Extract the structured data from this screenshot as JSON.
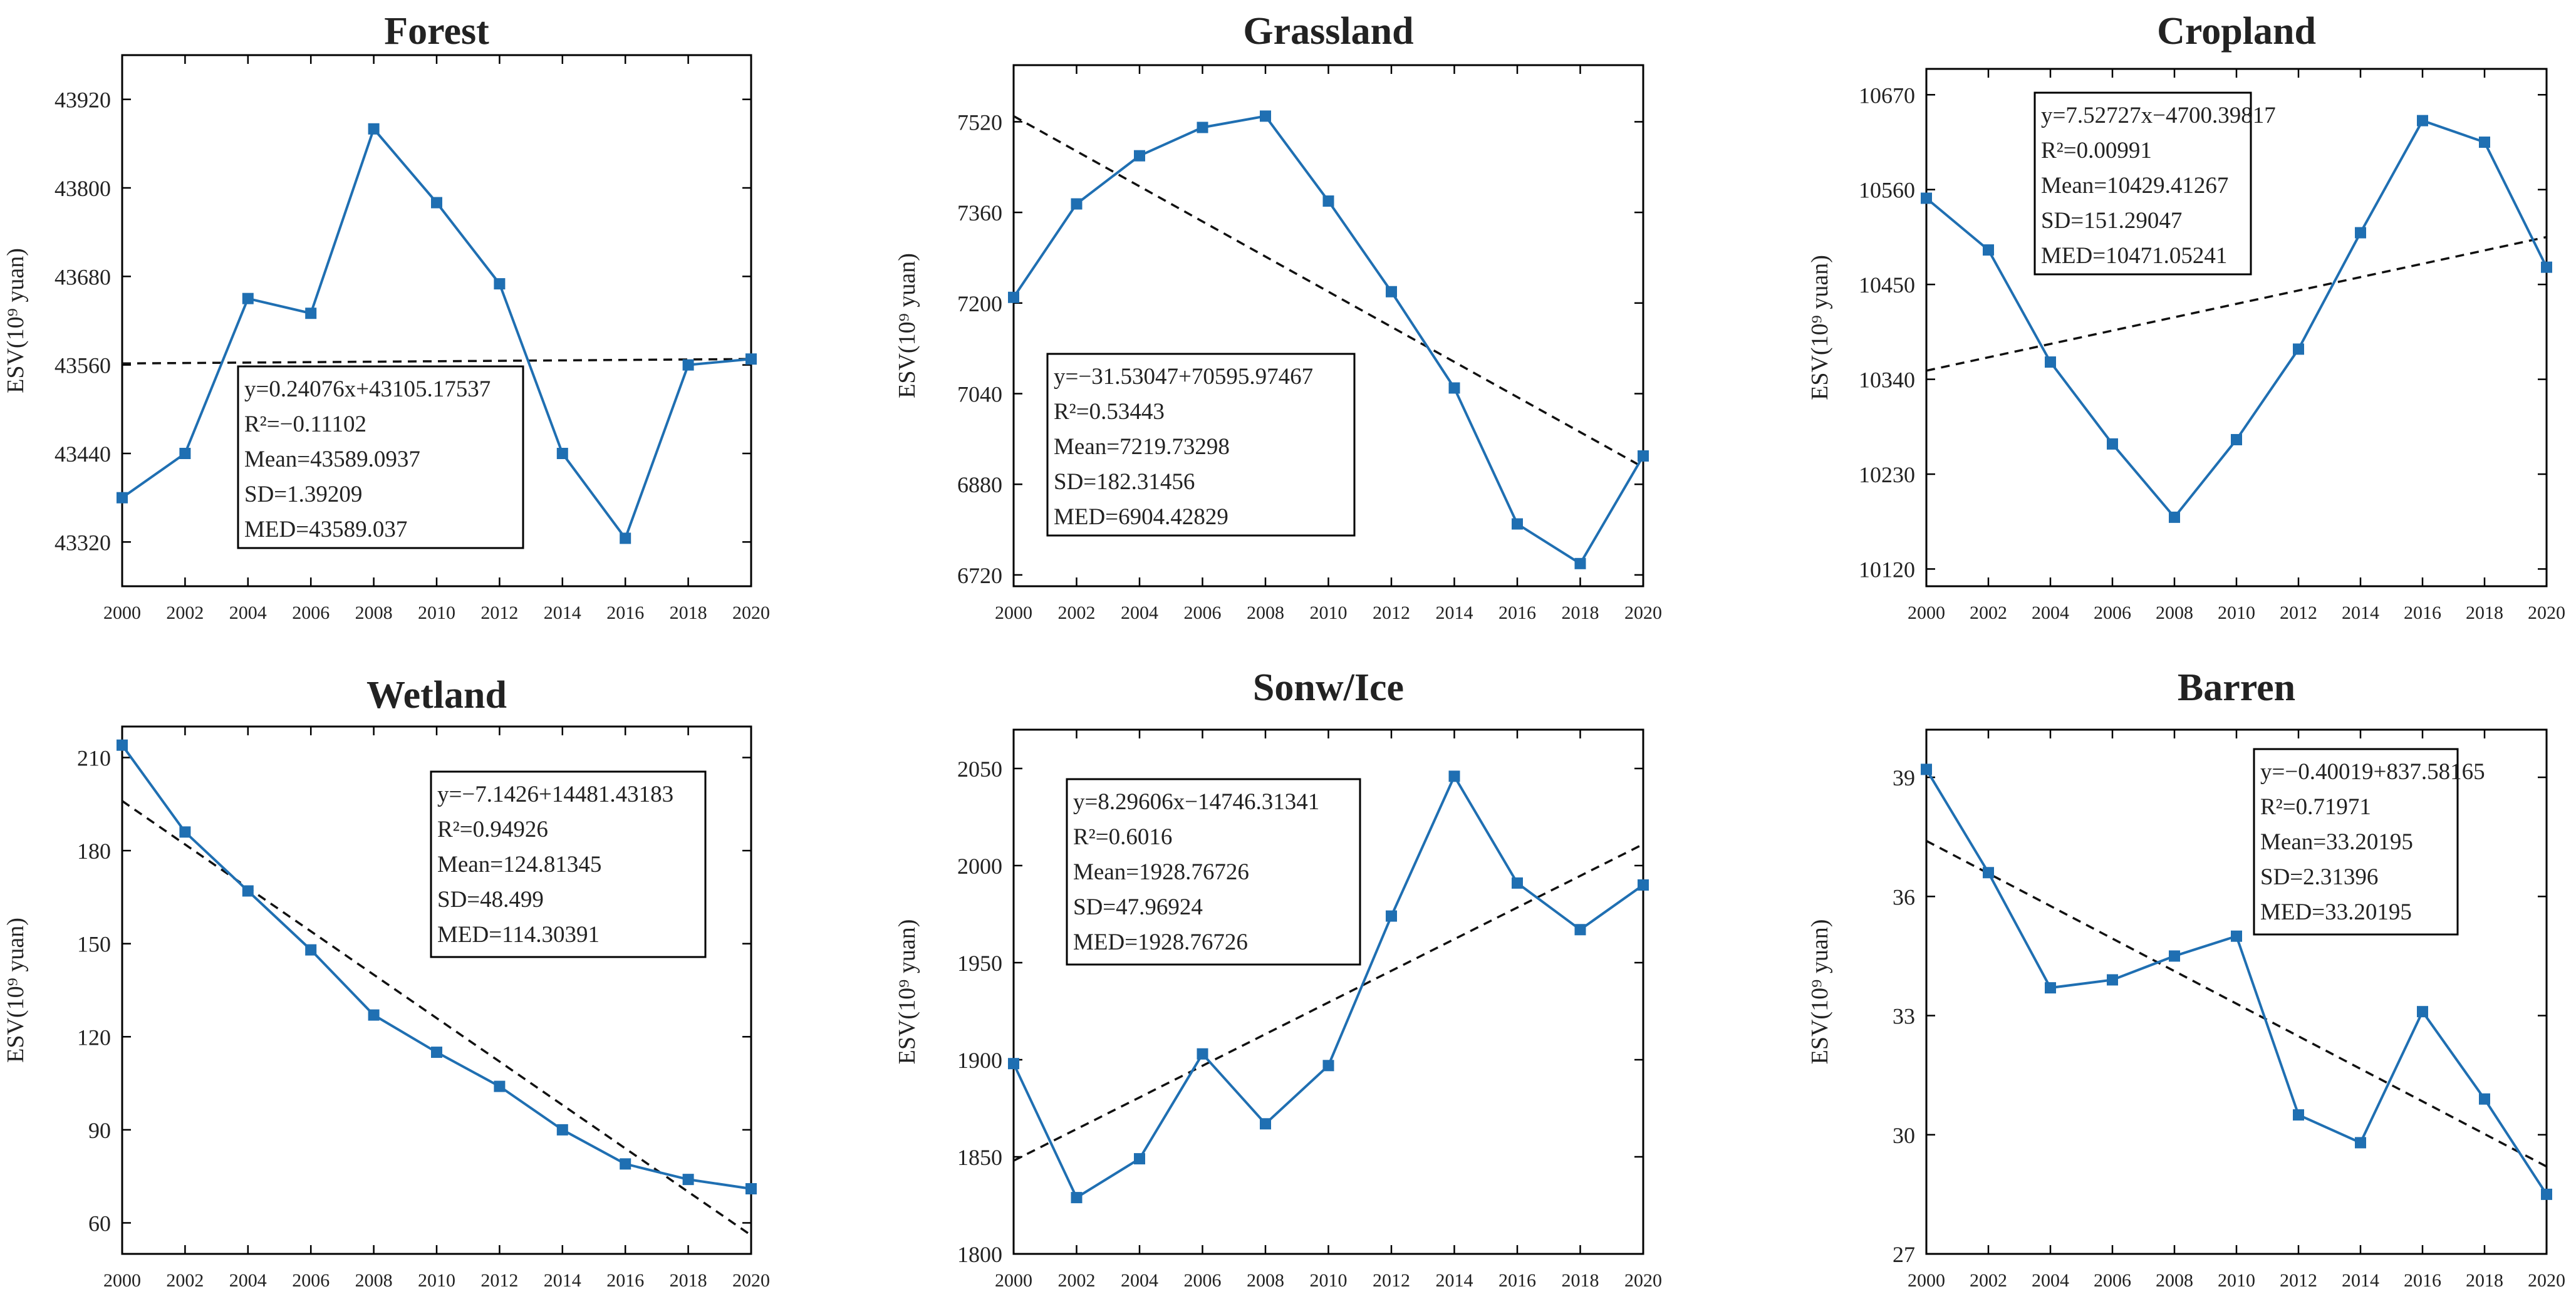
{
  "figure": {
    "colors": {
      "series": "#1f6fb2",
      "trend": "#111111",
      "axis": "#000000",
      "text": "#222222"
    }
  },
  "chart_data": [
    {
      "type": "line",
      "title": "Forest",
      "ylabel": "ESV(10⁹ yuan)",
      "x": [
        2000,
        2002,
        2004,
        2006,
        2008,
        2010,
        2012,
        2014,
        2016,
        2018,
        2020
      ],
      "xlim": [
        2000,
        2020
      ],
      "ylim": [
        43260,
        43980
      ],
      "yticks": [
        43320,
        43440,
        43560,
        43680,
        43800,
        43920
      ],
      "series": [
        {
          "values": [
            43380,
            43440,
            43650,
            43630,
            43880,
            43780,
            43670,
            43440,
            43325,
            43560,
            43568
          ]
        }
      ],
      "trend": [
        43562,
        43568
      ],
      "stats": [
        "y=0.24076x+43105.17537",
        "R²=−0.11102",
        "Mean=43589.0937",
        "SD=1.39209",
        "MED=43589.037"
      ],
      "legend_position": "bottom-center",
      "grid": false
    },
    {
      "type": "line",
      "title": "Grassland",
      "ylabel": "ESV(10⁹ yuan)",
      "x": [
        2000,
        2002,
        2004,
        2006,
        2008,
        2010,
        2012,
        2014,
        2016,
        2018,
        2020
      ],
      "xlim": [
        2000,
        2020
      ],
      "ylim": [
        6700,
        7620
      ],
      "yticks": [
        6720,
        6880,
        7040,
        7200,
        7360,
        7520
      ],
      "series": [
        {
          "values": [
            7210,
            7375,
            7460,
            7510,
            7530,
            7380,
            7220,
            7050,
            6810,
            6740,
            6930
          ]
        }
      ],
      "trend": [
        7530,
        6910
      ],
      "stats": [
        "y=−31.53047+70595.97467",
        "R²=0.53443",
        "Mean=7219.73298",
        "SD=182.31456",
        "MED=6904.42829"
      ],
      "legend_position": "bottom-left",
      "grid": false
    },
    {
      "type": "line",
      "title": "Cropland",
      "ylabel": "ESV(10⁹ yuan)",
      "x": [
        2000,
        2002,
        2004,
        2006,
        2008,
        2010,
        2012,
        2014,
        2016,
        2018,
        2020
      ],
      "xlim": [
        2000,
        2020
      ],
      "ylim": [
        10100,
        10700
      ],
      "yticks": [
        10120,
        10230,
        10340,
        10450,
        10560,
        10670
      ],
      "series": [
        {
          "values": [
            10550,
            10490,
            10360,
            10265,
            10180,
            10270,
            10375,
            10510,
            10640,
            10615,
            10470
          ]
        }
      ],
      "trend": [
        10350,
        10505
      ],
      "stats": [
        "y=7.52727x−4700.39817",
        "R²=0.00991",
        "Mean=10429.41267",
        "SD=151.29047",
        "MED=10471.05241"
      ],
      "legend_position": "top-left",
      "grid": false
    },
    {
      "type": "line",
      "title": "Wetland",
      "ylabel": "ESV(10⁹ yuan)",
      "x": [
        2000,
        2002,
        2004,
        2006,
        2008,
        2010,
        2012,
        2014,
        2016,
        2018,
        2020
      ],
      "xlim": [
        2000,
        2020
      ],
      "ylim": [
        50,
        220
      ],
      "yticks": [
        60,
        90,
        120,
        150,
        180,
        210
      ],
      "series": [
        {
          "values": [
            214,
            186,
            167,
            148,
            127,
            115,
            104,
            90,
            79,
            74,
            71
          ]
        }
      ],
      "trend": [
        196,
        56
      ],
      "stats": [
        "y=−7.1426+14481.43183",
        "R²=0.94926",
        "Mean=124.81345",
        "SD=48.499",
        "MED=114.30391"
      ],
      "legend_position": "top-right",
      "grid": false
    },
    {
      "type": "line",
      "title": "Sonw/Ice",
      "ylabel": "ESV(10⁹ yuan)",
      "x": [
        2000,
        2002,
        2004,
        2006,
        2008,
        2010,
        2012,
        2014,
        2016,
        2018,
        2020
      ],
      "xlim": [
        2000,
        2020
      ],
      "ylim": [
        1800,
        2070
      ],
      "yticks": [
        1800,
        1850,
        1900,
        1950,
        2000,
        2050
      ],
      "series": [
        {
          "values": [
            1898,
            1829,
            1849,
            1903,
            1867,
            1897,
            1974,
            2046,
            1991,
            1967,
            1990
          ]
        }
      ],
      "trend": [
        1848,
        2011
      ],
      "stats": [
        "y=8.29606x−14746.31341",
        "R²=0.6016",
        "Mean=1928.76726",
        "SD=47.96924",
        "MED=1928.76726"
      ],
      "legend_position": "top-left",
      "grid": false
    },
    {
      "type": "line",
      "title": "Barren",
      "ylabel": "ESV(10⁹ yuan)",
      "x": [
        2000,
        2002,
        2004,
        2006,
        2008,
        2010,
        2012,
        2014,
        2016,
        2018,
        2020
      ],
      "xlim": [
        2000,
        2020
      ],
      "ylim": [
        27,
        40.2
      ],
      "yticks": [
        27,
        30,
        33,
        36,
        39
      ],
      "series": [
        {
          "values": [
            39.2,
            36.6,
            33.7,
            33.9,
            34.5,
            35.0,
            30.5,
            29.8,
            33.1,
            30.9,
            28.5
          ]
        }
      ],
      "trend": [
        37.4,
        29.2
      ],
      "stats": [
        "y=−0.40019+837.58165",
        "R²=0.71971",
        "Mean=33.20195",
        "SD=2.31396",
        "MED=33.20195"
      ],
      "legend_position": "top-right",
      "grid": false
    }
  ]
}
